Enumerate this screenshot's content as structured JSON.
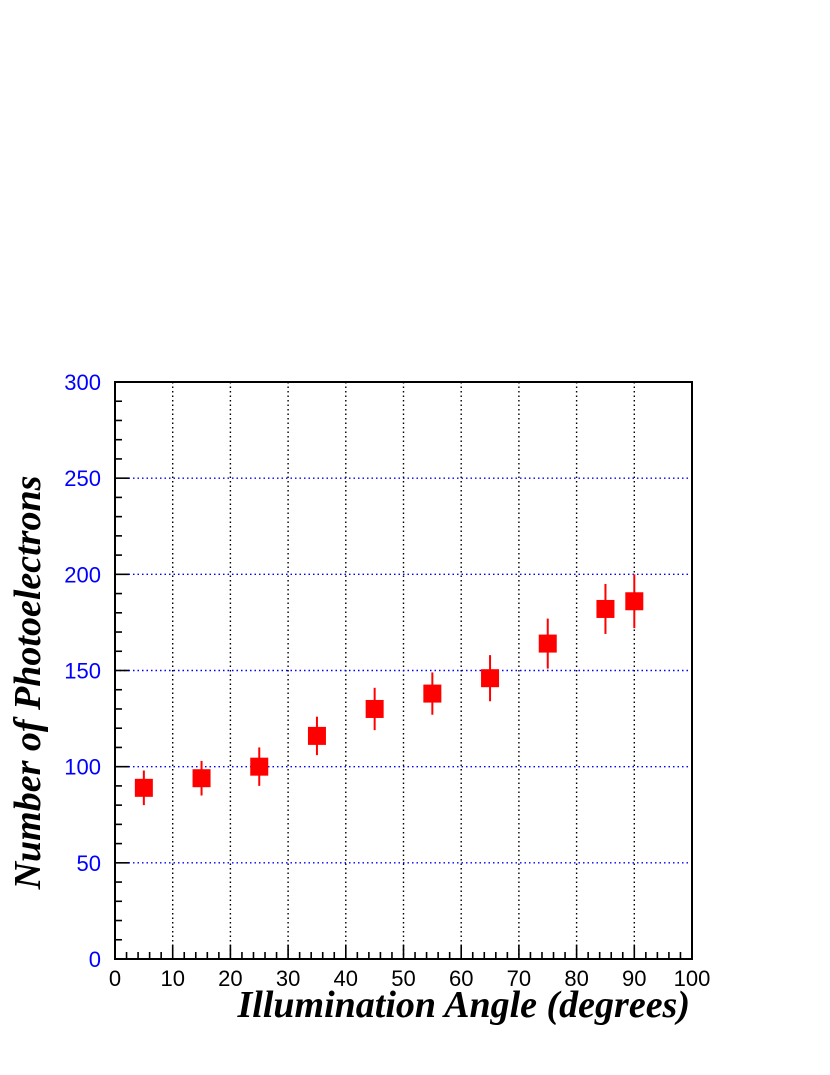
{
  "chart_data": {
    "type": "scatter",
    "title": "",
    "xlabel": "Illumination Angle (degrees)",
    "ylabel": "Number of Photoelectrons",
    "xlim": [
      0,
      100
    ],
    "ylim": [
      0,
      300
    ],
    "x_ticks": [
      0,
      10,
      20,
      30,
      40,
      50,
      60,
      70,
      80,
      90,
      100
    ],
    "y_ticks": [
      0,
      50,
      100,
      150,
      200,
      250,
      300
    ],
    "grid": true,
    "marker": "square",
    "series": [
      {
        "x": [
          5,
          15,
          25,
          35,
          45,
          55,
          65,
          75,
          85,
          90
        ],
        "y": [
          89,
          94,
          100,
          116,
          130,
          138,
          146,
          164,
          182,
          186
        ],
        "yerr": [
          9,
          9,
          10,
          10,
          11,
          11,
          12,
          13,
          13,
          14
        ]
      }
    ],
    "colors": {
      "marker": "#ff0000",
      "ytick_labels": "#0000ff",
      "horizontal_grid": "#0000ff",
      "vertical_grid": "#000000"
    }
  }
}
